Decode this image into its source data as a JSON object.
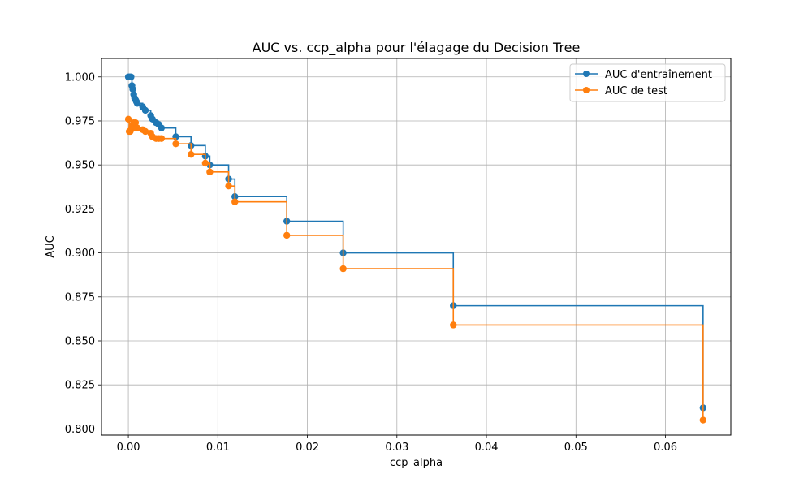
{
  "chart_data": {
    "type": "line",
    "title": "AUC vs. ccp_alpha pour l'élagage du Decision Tree",
    "xlabel": "ccp_alpha",
    "ylabel": "AUC",
    "xlim": [
      -0.003,
      0.0673
    ],
    "ylim": [
      0.7965,
      1.0105
    ],
    "x_ticks": [
      0.0,
      0.01,
      0.02,
      0.03,
      0.04,
      0.05,
      0.06
    ],
    "x_tick_labels": [
      "0.00",
      "0.01",
      "0.02",
      "0.03",
      "0.04",
      "0.05",
      "0.06"
    ],
    "y_ticks": [
      0.8,
      0.825,
      0.85,
      0.875,
      0.9,
      0.925,
      0.95,
      0.975,
      1.0
    ],
    "y_tick_labels": [
      "0.800",
      "0.825",
      "0.850",
      "0.875",
      "0.900",
      "0.925",
      "0.950",
      "0.975",
      "1.000"
    ],
    "grid": true,
    "step": "post",
    "marker": "circle",
    "legend_position": "top-right",
    "x": [
      0.0,
      0.0001,
      0.0002,
      0.0003,
      0.0004,
      0.0005,
      0.0006,
      0.0007,
      0.0008,
      0.0009,
      0.001,
      0.0016,
      0.0019,
      0.0025,
      0.0027,
      0.0031,
      0.0034,
      0.0037,
      0.0053,
      0.007,
      0.0086,
      0.0091,
      0.0112,
      0.0119,
      0.0177,
      0.024,
      0.0363,
      0.0642
    ],
    "series": [
      {
        "name": "AUC d'entraînement",
        "color": "#1f77b4",
        "values": [
          1.0,
          1.0,
          1.0,
          1.0,
          0.995,
          0.993,
          0.99,
          0.988,
          0.987,
          0.986,
          0.985,
          0.983,
          0.981,
          0.978,
          0.976,
          0.974,
          0.973,
          0.971,
          0.966,
          0.961,
          0.955,
          0.95,
          0.942,
          0.932,
          0.918,
          0.9,
          0.87,
          0.812
        ]
      },
      {
        "name": "AUC de test",
        "color": "#ff7f0e",
        "values": [
          0.976,
          0.969,
          0.969,
          0.97,
          0.972,
          0.973,
          0.974,
          0.972,
          0.974,
          0.971,
          0.971,
          0.97,
          0.969,
          0.968,
          0.966,
          0.965,
          0.965,
          0.965,
          0.962,
          0.956,
          0.951,
          0.946,
          0.938,
          0.929,
          0.91,
          0.891,
          0.859,
          0.805
        ]
      }
    ]
  }
}
